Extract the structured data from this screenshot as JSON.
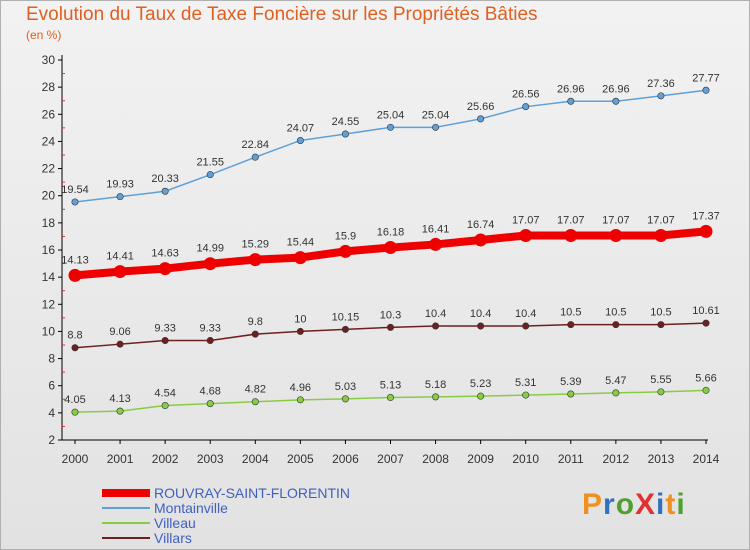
{
  "title": "Evolution du Taux de Taxe Foncière sur les Propriétés Bâties",
  "subtitle": "(en %)",
  "logo": "ProXiti",
  "colors": {
    "rouvray": "#ee0000",
    "montainville": "#5fa0d8",
    "villeau": "#88cc44",
    "villars": "#6e1f1f",
    "title": "#e06020",
    "legend_text": "#4060c0"
  },
  "chart_data": {
    "type": "line",
    "x": [
      2000,
      2001,
      2002,
      2003,
      2004,
      2005,
      2006,
      2007,
      2008,
      2009,
      2010,
      2011,
      2012,
      2013,
      2014
    ],
    "ylim": [
      2,
      30
    ],
    "yticks": [
      2,
      4,
      6,
      8,
      10,
      12,
      14,
      16,
      18,
      20,
      22,
      24,
      26,
      28,
      30
    ],
    "grid": false,
    "legend": "bottom-left",
    "series": [
      {
        "name": "ROUVRAY-SAINT-FLORENTIN",
        "key": "rouvray",
        "values": [
          14.13,
          14.41,
          14.63,
          14.99,
          15.29,
          15.44,
          15.9,
          16.18,
          16.41,
          16.74,
          17.07,
          17.07,
          17.07,
          17.07,
          17.37
        ],
        "labels": [
          "14.13",
          "14.41",
          "14.63",
          "14.99",
          "15.29",
          "15.44",
          "15.9",
          "16.18",
          "16.41",
          "16.74",
          "17.07",
          "17.07",
          "17.07",
          "17.07",
          "17.37"
        ]
      },
      {
        "name": "Montainville",
        "key": "montainville",
        "values": [
          19.54,
          19.93,
          20.33,
          21.55,
          22.84,
          24.07,
          24.55,
          25.04,
          25.04,
          25.66,
          26.56,
          26.96,
          26.96,
          27.36,
          27.77
        ],
        "labels": [
          "19.54",
          "19.93",
          "20.33",
          "21.55",
          "22.84",
          "24.07",
          "24.55",
          "25.04",
          "25.04",
          "25.66",
          "26.56",
          "26.96",
          "26.96",
          "27.36",
          "27.77"
        ]
      },
      {
        "name": "Villeau",
        "key": "villeau",
        "values": [
          4.05,
          4.13,
          4.54,
          4.68,
          4.82,
          4.96,
          5.03,
          5.13,
          5.18,
          5.23,
          5.31,
          5.39,
          5.47,
          5.55,
          5.66
        ],
        "labels": [
          "4.05",
          "4.13",
          "4.54",
          "4.68",
          "4.82",
          "4.96",
          "5.03",
          "5.13",
          "5.18",
          "5.23",
          "5.31",
          "5.39",
          "5.47",
          "5.55",
          "5.66"
        ]
      },
      {
        "name": "Villars",
        "key": "villars",
        "values": [
          8.8,
          9.06,
          9.33,
          9.33,
          9.8,
          10,
          10.15,
          10.3,
          10.4,
          10.4,
          10.4,
          10.5,
          10.5,
          10.5,
          10.61
        ],
        "labels": [
          "8.8",
          "9.06",
          "9.33",
          "9.33",
          "9.8",
          "10",
          "10.15",
          "10.3",
          "10.4",
          "10.4",
          "10.4",
          "10.5",
          "10.5",
          "10.5",
          "10.61"
        ]
      }
    ]
  }
}
